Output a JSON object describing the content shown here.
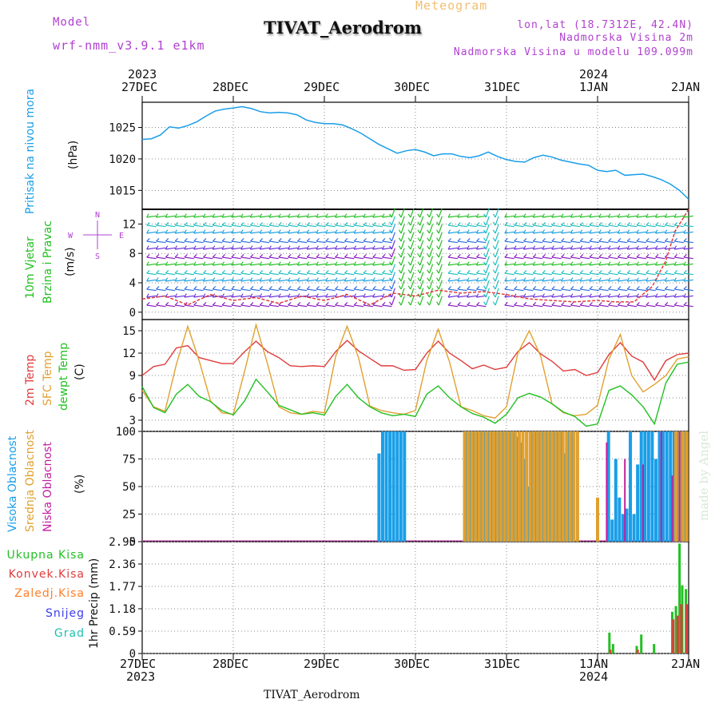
{
  "header": {
    "model_label": "Model",
    "model_value": "wrf-nmm_v3.9.1 e1km",
    "meteogram": "Meteogram",
    "title": "TIVAT_Aerodrom",
    "lonlat": "lon,lat (18.7312E, 42.4N)",
    "elevation": "Nadmorska Visina 2m",
    "model_elevation": "Nadmorska Visina u modelu 109.099m",
    "footer": "TIVAT_Aerodrom",
    "watermark": "made by Angel"
  },
  "colors": {
    "pressure": "#1a9ee8",
    "wind_green": "#22c022",
    "temp2m": "#e03c3c",
    "sfc_temp": "#e0a030",
    "dewpt": "#22c022",
    "high_cloud": "#1a9ee8",
    "mid_cloud": "#e0a030",
    "low_cloud": "#c020a0",
    "total_precip": "#22c022",
    "conv_precip": "#e03c3c",
    "frozen_precip": "#ff7f2a",
    "snow": "#3c3cf0",
    "graupel": "#20c0b0",
    "magenta_text": "#b040d0"
  },
  "time_axis": {
    "top_years": [
      "2023",
      "2024"
    ],
    "bottom_years": [
      "2023",
      "2024"
    ],
    "dates": [
      "27DEC",
      "28DEC",
      "29DEC",
      "30DEC",
      "31DEC",
      "1JAN",
      "2JAN"
    ]
  },
  "chart_data": [
    {
      "type": "line",
      "name": "pressure",
      "labels": [
        "Pritisak na nivou mora",
        "(hPa)"
      ],
      "ylim": [
        1012,
        1029
      ],
      "yticks": [
        1015,
        1020,
        1025
      ],
      "x": [
        0,
        0.1,
        0.2,
        0.3,
        0.4,
        0.5,
        0.6,
        0.7,
        0.8,
        0.9,
        1,
        1.1,
        1.2,
        1.3,
        1.4,
        1.5,
        1.6,
        1.7,
        1.8,
        1.9,
        2,
        2.1,
        2.2,
        2.3,
        2.4,
        2.5,
        2.6,
        2.7,
        2.8,
        2.9,
        3,
        3.1,
        3.2,
        3.3,
        3.4,
        3.5,
        3.6,
        3.7,
        3.8,
        3.9,
        4,
        4.1,
        4.2,
        4.3,
        4.4,
        4.5,
        4.6,
        4.7,
        4.8,
        4.9,
        5,
        5.1,
        5.2,
        5.3,
        5.4,
        5.5,
        5.6,
        5.7,
        5.8,
        5.9,
        6
      ],
      "values": [
        1023.1,
        1023.2,
        1023.8,
        1025.1,
        1024.9,
        1025.3,
        1025.9,
        1026.8,
        1027.6,
        1027.9,
        1028.1,
        1028.3,
        1028,
        1027.5,
        1027.3,
        1027.4,
        1027.3,
        1027,
        1026.2,
        1025.8,
        1025.6,
        1025.6,
        1025.4,
        1024.8,
        1024.1,
        1023.2,
        1022.3,
        1021.6,
        1020.9,
        1021.3,
        1021.5,
        1021.1,
        1020.5,
        1020.8,
        1020.8,
        1020.4,
        1020.2,
        1020.5,
        1021.1,
        1020.4,
        1019.9,
        1019.6,
        1019.5,
        1020.2,
        1020.6,
        1020.3,
        1019.8,
        1019.5,
        1019.2,
        1019.0,
        1018.2,
        1018.0,
        1018.2,
        1017.4,
        1017.5,
        1017.6,
        1017.2,
        1016.7,
        1016.0,
        1015.0,
        1013.6
      ]
    },
    {
      "type": "barbs",
      "name": "wind",
      "labels": [
        "10m Vjetar",
        "Brzina i Pravac",
        "(m/s)"
      ],
      "compass": [
        "N",
        "E",
        "S",
        "W"
      ],
      "ylim": [
        -1,
        14
      ],
      "yticks": [
        0,
        4,
        8,
        12
      ],
      "speed_x": [
        0,
        0.25,
        0.5,
        0.75,
        1,
        1.25,
        1.5,
        1.75,
        2,
        2.25,
        2.5,
        2.75,
        3,
        3.25,
        3.5,
        3.75,
        4,
        4.25,
        4.5,
        4.75,
        5,
        5.2,
        5.4,
        5.6,
        5.75,
        5.85,
        5.95,
        6
      ],
      "speed": [
        1.8,
        2.2,
        1.0,
        2.4,
        1.6,
        2.0,
        1.2,
        2.2,
        1.6,
        2.4,
        1.0,
        2.6,
        2.2,
        3.0,
        2.6,
        2.8,
        2.4,
        1.8,
        1.6,
        1.4,
        1.6,
        1.4,
        1.4,
        3.5,
        7,
        11,
        13,
        14
      ]
    },
    {
      "type": "line",
      "name": "temperature",
      "labels": [
        "2m Temp",
        "SFC Temp",
        "dewpt Temp",
        "(C)"
      ],
      "ylim": [
        1.5,
        16.5
      ],
      "yticks": [
        3,
        6,
        9,
        12,
        15
      ],
      "x": [
        0,
        0.125,
        0.25,
        0.375,
        0.5,
        0.625,
        0.75,
        0.875,
        1,
        1.125,
        1.25,
        1.375,
        1.5,
        1.625,
        1.75,
        1.875,
        2,
        2.125,
        2.25,
        2.375,
        2.5,
        2.625,
        2.75,
        2.875,
        3,
        3.125,
        3.25,
        3.375,
        3.5,
        3.625,
        3.75,
        3.875,
        4,
        4.125,
        4.25,
        4.375,
        4.5,
        4.625,
        4.75,
        4.875,
        5,
        5.125,
        5.25,
        5.375,
        5.5,
        5.625,
        5.75,
        5.875,
        6
      ],
      "series": [
        {
          "name": "2m Temp",
          "values": [
            9.0,
            10.2,
            10.5,
            12.7,
            13.0,
            11.4,
            11.0,
            10.6,
            10.6,
            12.2,
            13.6,
            12.2,
            11.4,
            10.3,
            10.2,
            10.3,
            10.2,
            12.2,
            13.7,
            12.3,
            11.3,
            10.3,
            10.3,
            9.7,
            9.8,
            12.0,
            13.6,
            12.0,
            11.0,
            9.9,
            10.4,
            9.8,
            10.1,
            12.2,
            13.4,
            11.9,
            10.9,
            9.6,
            9.8,
            9.0,
            9.4,
            11.8,
            13.4,
            11.6,
            10.8,
            8.4,
            11.0,
            11.8,
            12.0
          ]
        },
        {
          "name": "SFC Temp",
          "values": [
            7.0,
            4.8,
            4.2,
            10.5,
            15.6,
            11.0,
            5.6,
            4.0,
            3.8,
            9.6,
            15.8,
            10.6,
            4.8,
            4.0,
            3.8,
            4.2,
            4.0,
            11.6,
            15.6,
            11.4,
            4.9,
            4.3,
            4.0,
            3.8,
            4.3,
            11.0,
            15.2,
            10.8,
            4.8,
            4.3,
            3.6,
            3.3,
            4.8,
            12.0,
            15.0,
            11.6,
            5.2,
            4.0,
            3.6,
            3.8,
            5.0,
            11.2,
            14.5,
            9.0,
            6.8,
            7.8,
            9.0,
            11.2,
            11.5
          ]
        },
        {
          "name": "dewpt Temp",
          "values": [
            7.5,
            4.7,
            4.0,
            6.5,
            7.8,
            6.2,
            5.5,
            4.3,
            3.7,
            5.6,
            8.5,
            6.8,
            5.0,
            4.4,
            3.8,
            4.0,
            3.7,
            6.2,
            7.8,
            6.0,
            4.8,
            4.0,
            3.6,
            3.8,
            3.5,
            6.5,
            7.6,
            6.0,
            4.8,
            3.9,
            3.4,
            2.6,
            3.8,
            6.0,
            6.6,
            6.1,
            5.2,
            4.1,
            3.5,
            2.2,
            2.5,
            7.0,
            7.6,
            6.4,
            4.8,
            2.5,
            8.0,
            10.5,
            10.8
          ]
        }
      ]
    },
    {
      "type": "bar",
      "name": "cloud_cover",
      "labels": [
        "Visoka Oblacnost",
        "Srednja Oblacnost",
        "Niska Oblacnost",
        "(%)"
      ],
      "ylim": [
        0,
        100
      ],
      "yticks": [
        0,
        25,
        50,
        75,
        100
      ],
      "series": [
        {
          "name": "Visoka Oblacnost",
          "x": [
            2.6,
            2.64,
            2.68,
            2.72,
            2.76,
            2.8,
            2.84,
            2.88,
            3.56,
            3.6,
            3.64,
            3.68,
            3.72,
            3.76,
            3.8,
            3.84,
            3.88,
            3.92,
            3.96,
            4.0,
            4.04,
            4.08,
            4.12,
            4.16,
            4.2,
            4.24,
            4.28,
            4.32,
            4.36,
            4.4,
            4.44,
            4.48,
            4.52,
            4.56,
            4.6,
            4.64,
            4.68,
            4.72,
            5.12,
            5.16,
            5.2,
            5.24,
            5.28,
            5.32,
            5.36,
            5.4,
            5.44,
            5.48,
            5.52,
            5.56,
            5.6,
            5.64,
            5.68,
            5.72,
            5.76,
            5.8,
            5.84,
            5.88,
            5.92,
            5.96
          ],
          "values": [
            80,
            100,
            100,
            100,
            100,
            100,
            100,
            100,
            100,
            100,
            100,
            100,
            100,
            100,
            100,
            100,
            100,
            100,
            100,
            100,
            100,
            100,
            95,
            90,
            75,
            50,
            100,
            100,
            100,
            100,
            100,
            100,
            100,
            100,
            100,
            80,
            100,
            100,
            100,
            20,
            75,
            40,
            25,
            30,
            100,
            25,
            70,
            100,
            100,
            100,
            100,
            75,
            100,
            100,
            100,
            100,
            100,
            100,
            100,
            100
          ]
        },
        {
          "name": "Srednja Oblacnost",
          "x": [
            3.54,
            3.58,
            3.62,
            3.66,
            3.7,
            3.74,
            3.78,
            3.82,
            3.86,
            3.9,
            3.94,
            3.98,
            4.02,
            4.06,
            4.1,
            4.14,
            4.18,
            4.22,
            4.26,
            4.3,
            4.34,
            4.38,
            4.42,
            4.46,
            4.5,
            4.54,
            4.58,
            4.62,
            4.66,
            4.7,
            4.74,
            4.78,
            5.0,
            5.86,
            5.9,
            5.94,
            5.98
          ],
          "values": [
            100,
            100,
            100,
            100,
            100,
            100,
            100,
            100,
            100,
            100,
            100,
            100,
            100,
            100,
            100,
            100,
            100,
            100,
            100,
            100,
            100,
            100,
            100,
            100,
            100,
            100,
            100,
            100,
            100,
            100,
            100,
            100,
            40,
            100,
            100,
            100,
            100
          ]
        },
        {
          "name": "Niska Oblacnost",
          "x": [
            5.1,
            5.3,
            5.5,
            5.7,
            5.82,
            5.9
          ],
          "values": [
            90,
            75,
            70,
            100,
            60,
            100
          ]
        }
      ]
    },
    {
      "type": "bar",
      "name": "precipitation",
      "labels": [
        "Ukupna Kisa",
        "Konvek.Kisa",
        "Zaledj.Kisa",
        "Snijeg",
        "Grad",
        "1hr Precip (mm)"
      ],
      "ylim": [
        0,
        2.95
      ],
      "yticks": [
        "0",
        "0.59",
        "1.18",
        "1.77",
        "2.36",
        "2.95"
      ],
      "series": [
        {
          "name": "Ukupna Kisa",
          "x": [
            5.13,
            5.17,
            5.43,
            5.48,
            5.62,
            5.82,
            5.86,
            5.9,
            5.93,
            5.97
          ],
          "values": [
            0.55,
            0.25,
            0.2,
            0.5,
            0.25,
            1.1,
            1.25,
            2.9,
            1.8,
            1.7
          ]
        },
        {
          "name": "Konvek.Kisa",
          "x": [
            5.14,
            5.44,
            5.83,
            5.88,
            5.92,
            5.98
          ],
          "values": [
            0.1,
            0.1,
            0.9,
            1.0,
            1.3,
            1.3
          ]
        }
      ]
    }
  ]
}
